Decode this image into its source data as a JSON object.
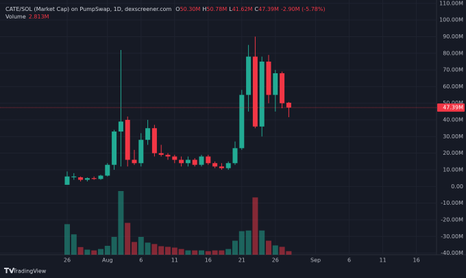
{
  "chart_data": {
    "type": "candlestick",
    "header": {
      "title": "CATE/SOL (Market Cap) on PumpSwap, 1D, dexscreener.com",
      "ohlc_labels": [
        "O",
        "H",
        "L",
        "C"
      ],
      "ohlc_values": [
        "50.30M",
        "50.78M",
        "41.62M",
        "47.39M"
      ],
      "change": "-2.90M (-5.78%)",
      "volume_label": "Volume",
      "volume_value": "2.813M"
    },
    "branding": "TradingView",
    "x": [
      0,
      1,
      2,
      3,
      4,
      5,
      6,
      7,
      8,
      9,
      10,
      11,
      12,
      13,
      14,
      15,
      16,
      17,
      18,
      19,
      20,
      21,
      22,
      23,
      24,
      25,
      26,
      27,
      28,
      29,
      30,
      31,
      32,
      33
    ],
    "open": [
      1,
      5.5,
      5.5,
      4,
      5,
      4.5,
      6.5,
      13,
      33,
      40,
      16,
      14,
      28,
      35,
      20,
      19,
      18,
      16,
      14,
      16,
      13,
      18,
      14,
      12,
      11,
      14,
      23,
      55,
      78,
      36,
      75,
      55,
      68,
      50.3
    ],
    "high": [
      9,
      8,
      6,
      5.5,
      6,
      7,
      14,
      34,
      82,
      42,
      22,
      32,
      40,
      37,
      25,
      20,
      19,
      18,
      18,
      17,
      19,
      19,
      15,
      14,
      15,
      27,
      58,
      85,
      90,
      78,
      79,
      70,
      69,
      50.78
    ],
    "low": [
      1,
      4,
      3,
      3,
      4,
      4,
      6,
      10,
      12,
      12,
      13,
      12,
      25,
      18,
      18,
      16,
      14,
      12,
      12,
      12,
      12,
      13,
      11,
      10,
      10,
      13,
      22,
      45,
      35,
      30,
      50,
      45,
      47,
      41.62
    ],
    "close": [
      6,
      6,
      4,
      5,
      4.5,
      6.5,
      13,
      33,
      39,
      16,
      14,
      28,
      35,
      20,
      19,
      18,
      16,
      14,
      16,
      13,
      18,
      14,
      12,
      11,
      14,
      23,
      55,
      78,
      36,
      75,
      55,
      68,
      50,
      47.39
    ],
    "volume": {
      "axis": "y2",
      "values": [
        24,
        16,
        6,
        4,
        3.4,
        4.5,
        7,
        14,
        50,
        25,
        10,
        14,
        9.5,
        8.4,
        6.7,
        6.2,
        5.6,
        4.5,
        3.4,
        3.4,
        3.4,
        2.8,
        3.4,
        3.4,
        4.5,
        11,
        18.5,
        19,
        45,
        19,
        11,
        7.3,
        6.2,
        2.813
      ]
    },
    "up_color": "#22ab94",
    "down_color": "#f23645",
    "price_line": {
      "value": 47.39,
      "label": "47.39M"
    },
    "xlim": [
      -10,
      55
    ],
    "xticks": [
      {
        "value": 0,
        "label": "26"
      },
      {
        "value": 6,
        "label": "Aug"
      },
      {
        "value": 11,
        "label": "6"
      },
      {
        "value": 16,
        "label": "11"
      },
      {
        "value": 21,
        "label": "16"
      },
      {
        "value": 26,
        "label": "21"
      },
      {
        "value": 31,
        "label": "26"
      },
      {
        "value": 37,
        "label": "Sep"
      },
      {
        "value": 42,
        "label": "6"
      },
      {
        "value": 47,
        "label": "11"
      },
      {
        "value": 52,
        "label": "16"
      }
    ],
    "ylim": [
      -41,
      112
    ],
    "yticks": [
      {
        "value": 110,
        "label": "110.00M"
      },
      {
        "value": 100,
        "label": "100.00M"
      },
      {
        "value": 90,
        "label": "90.00M"
      },
      {
        "value": 80,
        "label": "80.00M"
      },
      {
        "value": 70,
        "label": "70.00M"
      },
      {
        "value": 60,
        "label": "60.00M"
      },
      {
        "value": 50,
        "label": "50.00M"
      },
      {
        "value": 40,
        "label": "40.00M"
      },
      {
        "value": 30,
        "label": "30.00M"
      },
      {
        "value": 20,
        "label": "20.00M"
      },
      {
        "value": 10,
        "label": "10.00M"
      },
      {
        "value": 0,
        "label": "0.00"
      },
      {
        "value": -10,
        "label": "-10.00M"
      },
      {
        "value": -20,
        "label": "-20.00M"
      },
      {
        "value": -30,
        "label": "-30.00M"
      },
      {
        "value": -40,
        "label": "-40.00M"
      }
    ],
    "y2lim": [
      0,
      200
    ],
    "grid": true
  }
}
